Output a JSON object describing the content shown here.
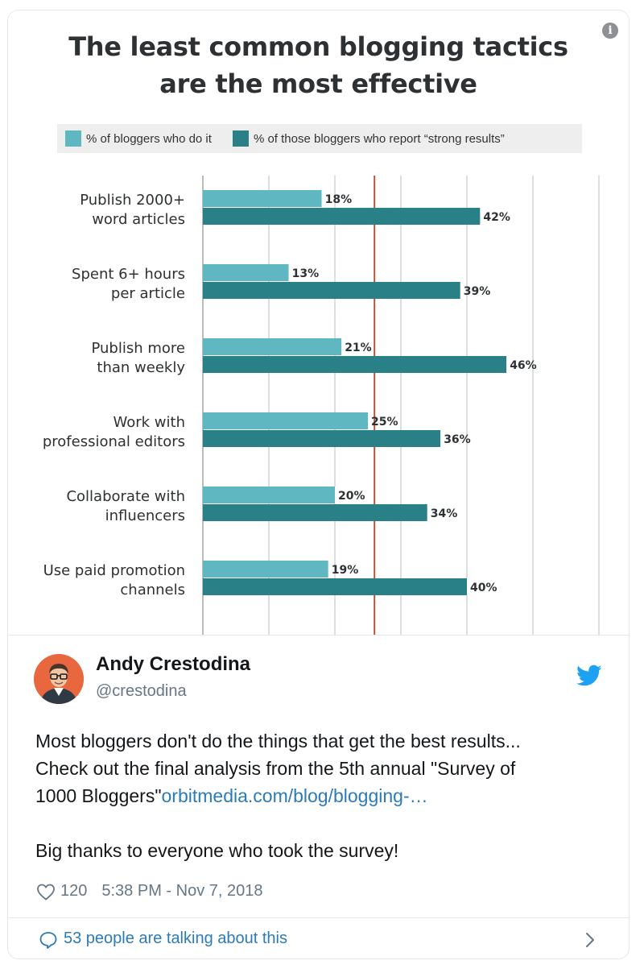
{
  "colors": {
    "bar_light": "#5fb8c1",
    "bar_dark": "#2a8087",
    "reference_line": "#b0553f",
    "link": "#2b7bb9",
    "twitter_blue": "#1da1f2",
    "avatar_bg": "#e8673f"
  },
  "media": {
    "info_icon": "info-icon",
    "info_glyph": "i"
  },
  "chart_data": {
    "type": "bar",
    "orientation": "horizontal",
    "title": "The least common blogging tactics are the most effective",
    "title_lines": [
      "The least common blogging tactics",
      "are the most effective"
    ],
    "legend_position": "top",
    "grid": true,
    "categories": [
      [
        "Publish 2000+",
        "word articles"
      ],
      [
        "Spent 6+ hours",
        "per article"
      ],
      [
        "Publish more",
        "than weekly"
      ],
      [
        "Work with",
        "professional editors"
      ],
      [
        "Collaborate with",
        "influencers"
      ],
      [
        "Use paid promotion",
        "channels"
      ]
    ],
    "series": [
      {
        "name": "% of bloggers who do it",
        "values": [
          18,
          13,
          21,
          25,
          20,
          19
        ],
        "labels": [
          "18%",
          "13%",
          "21%",
          "25%",
          "20%",
          "19%"
        ]
      },
      {
        "name": "% of those bloggers who report “strong results”",
        "values": [
          42,
          39,
          46,
          36,
          34,
          40
        ],
        "labels": [
          "42%",
          "39%",
          "46%",
          "36%",
          "34%",
          "40%"
        ]
      }
    ],
    "reference_line_value": 26,
    "xlim": [
      0,
      60
    ]
  },
  "tweet": {
    "user_name": "Andy Crestodina",
    "user_handle": "@crestodina",
    "bird_icon": "twitter-bird-icon",
    "text_line1": "Most bloggers don't do the things that get the best results...",
    "text_line2": "Check out the final analysis from the 5th annual \"Survey of",
    "text_line3_plain": "1000 Bloggers\"",
    "text_line3_link": "orbitmedia.com/blog/blogging-…",
    "text_line4": "Big thanks to everyone who took the survey!",
    "heart_icon": "heart-icon",
    "likes": "120",
    "timestamp": "5:38 PM - Nov 7, 2018"
  },
  "footer": {
    "bubble_icon": "speech-bubble-icon",
    "talking_label": "53 people are talking about this",
    "chevron_icon": "chevron-right-icon"
  }
}
